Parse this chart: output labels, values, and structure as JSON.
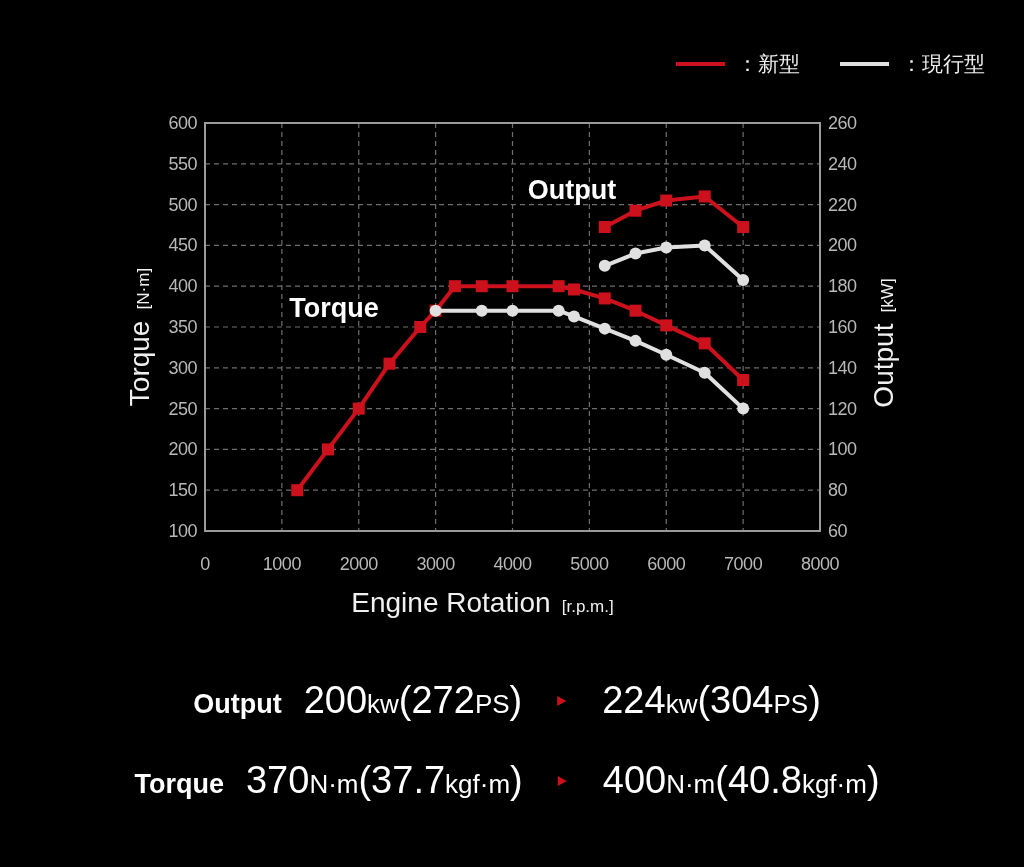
{
  "chart_data": {
    "type": "line",
    "xlabel": "Engine Rotation [r.p.m.]",
    "ylabel": "Torque [N·m]",
    "y2label": "Output [kW]",
    "xlim": [
      0,
      8000
    ],
    "xticks": [
      0,
      1000,
      2000,
      3000,
      4000,
      5000,
      6000,
      7000,
      8000
    ],
    "ylim": [
      100,
      600
    ],
    "yticks": [
      100,
      150,
      200,
      250,
      300,
      350,
      400,
      450,
      500,
      550,
      600
    ],
    "y2lim": [
      60,
      260
    ],
    "y2ticks": [
      60,
      80,
      100,
      120,
      140,
      160,
      180,
      200,
      220,
      240,
      260
    ],
    "grid": true,
    "legend": "top right",
    "line_style": "solid",
    "series": [
      {
        "name": "：新型",
        "color": "#cc111c",
        "marker": "square",
        "x": [
          1200,
          1600,
          2000,
          2400,
          2800,
          3000,
          3250,
          3600,
          4000,
          4600,
          4800,
          5200,
          5600,
          6000,
          6500,
          7000
        ],
        "values": [
          150,
          200,
          250,
          305,
          350,
          370,
          400,
          400,
          400,
          400,
          396,
          385,
          370,
          352,
          330,
          285
        ]
      },
      {
        "name": "：現行型",
        "color": "#e0e0e0",
        "marker": "circle",
        "x": [
          3000,
          3600,
          4000,
          4600,
          4800,
          5200,
          5600,
          6000,
          6500,
          7000
        ],
        "values": [
          370,
          370,
          370,
          370,
          363,
          348,
          333,
          316,
          294,
          250
        ]
      },
      {
        "color": "#cc111c",
        "marker": "square",
        "axis": "y2",
        "x": [
          5200,
          5600,
          6000,
          6500,
          7000
        ],
        "values": [
          209,
          217,
          222,
          224,
          209
        ]
      },
      {
        "color": "#e0e0e0",
        "marker": "circle",
        "axis": "y2",
        "x": [
          5200,
          5600,
          6000,
          6500,
          7000
        ],
        "values": [
          190,
          196,
          199,
          200,
          183
        ]
      }
    ],
    "annotations": [
      "Torque",
      "Output",
      "Output",
      "200kw(272PS)",
      "224kw(304PS)",
      "Torque",
      "370N·m(37.7kgf·m)",
      "400N·m(40.8kgf·m)"
    ]
  }
}
